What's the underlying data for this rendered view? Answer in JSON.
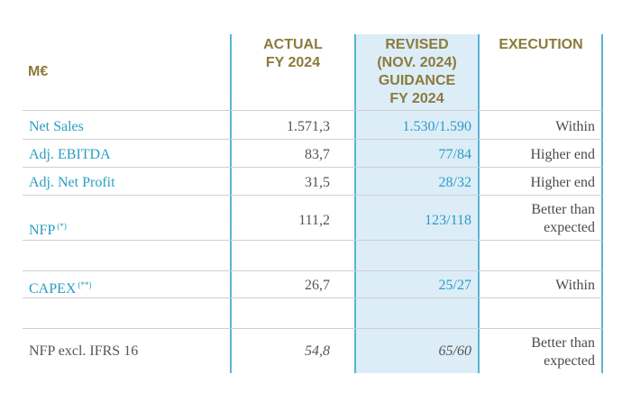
{
  "header": {
    "unit": "M€",
    "actual": [
      "ACTUAL",
      "FY 2024"
    ],
    "revised": [
      "REVISED",
      "(NOV. 2024)",
      "GUIDANCE",
      "FY 2024"
    ],
    "execution": "EXECUTION"
  },
  "rows": [
    {
      "label": "Net Sales",
      "note": "",
      "actual": "1.571,3",
      "revised": "1.530/1.590",
      "execution": [
        "Within"
      ]
    },
    {
      "label": "Adj. EBITDA",
      "note": "",
      "actual": "83,7",
      "revised": "77/84",
      "execution": [
        "Higher end"
      ]
    },
    {
      "label": "Adj. Net Profit",
      "note": "",
      "actual": "31,5",
      "revised": "28/32",
      "execution": [
        "Higher end"
      ]
    },
    {
      "label": "NFP",
      "note": "(*)",
      "actual": "111,2",
      "revised": "123/118",
      "execution": [
        "Better than",
        "expected"
      ]
    },
    {
      "label": "CAPEX",
      "note": "(**)",
      "actual": "26,7",
      "revised": "25/27",
      "execution": [
        "Within"
      ]
    },
    {
      "label": "NFP excl. IFRS 16",
      "note": "",
      "actual": "54,8",
      "revised": "65/60",
      "execution": [
        "Better than",
        "expected"
      ]
    }
  ],
  "colors": {
    "header_text": "#8c7a3c",
    "label_blue": "#2a9dc4",
    "column_shade": "#dcedf7",
    "column_lines": "#5ab4d6"
  }
}
